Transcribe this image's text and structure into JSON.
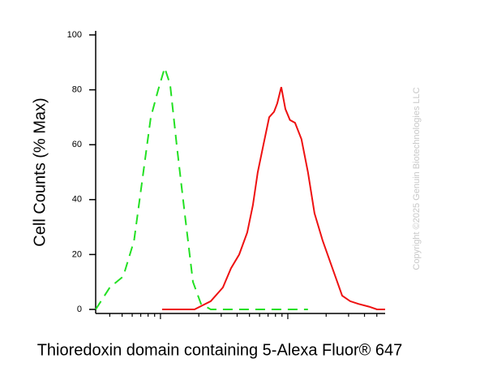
{
  "chart_data": {
    "type": "line",
    "xlabel": "Thioredoxin domain containing 5-Alexa Fluor® 647",
    "ylabel": "Cell Counts (% Max)",
    "watermark": "Copyright ©2025 Genuin Biotechnologies LLC",
    "xscale": "log",
    "xlim": [
      3.1,
      581
    ],
    "xticks": [
      4,
      5,
      6,
      7,
      8,
      9,
      10,
      20,
      30,
      40,
      50,
      60,
      70,
      80,
      90,
      100,
      200,
      300,
      400,
      500
    ],
    "ylim": [
      0,
      100
    ],
    "yticks": [
      0,
      20,
      40,
      60,
      80,
      100
    ],
    "series": [
      {
        "color": "#22e022",
        "dash": true,
        "x": [
          3.1,
          4.0,
          5.1,
          6.2,
          7.1,
          8.4,
          9.6,
          10.8,
          11.9,
          13.4,
          15.5,
          18.0,
          20.8,
          24.8,
          45,
          144
        ],
        "values": [
          0,
          8,
          12,
          25,
          45,
          70,
          80,
          88,
          82,
          60,
          35,
          10,
          2,
          0,
          0,
          0
        ]
      },
      {
        "color": "#ee1111",
        "dash": false,
        "x": [
          10.3,
          18.5,
          24.8,
          30.9,
          35.8,
          41.5,
          48.0,
          53.2,
          58.1,
          64.4,
          71.4,
          78.0,
          82.6,
          88.9,
          95.7,
          104,
          114,
          128,
          144,
          162,
          188,
          224,
          267,
          309,
          358,
          434,
          502,
          581
        ],
        "values": [
          0,
          0,
          3,
          8,
          15,
          20,
          28,
          38,
          50,
          60,
          70,
          72,
          75,
          81,
          73,
          69,
          68,
          62,
          50,
          35,
          25,
          15,
          5,
          3,
          2,
          1,
          0,
          0
        ]
      }
    ]
  }
}
